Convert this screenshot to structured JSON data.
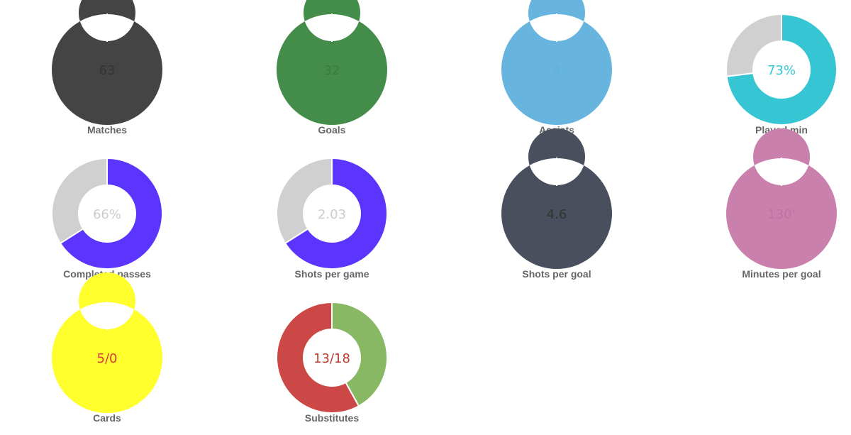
{
  "chart_data": [
    {
      "type": "pie",
      "center_text": "63",
      "center_text_color": "#333333",
      "label": "Matches",
      "slices": [
        {
          "value": 1,
          "color": "#444444"
        }
      ]
    },
    {
      "type": "pie",
      "center_text": "32",
      "center_text_color": "#3a7d3a",
      "label": "Goals",
      "slices": [
        {
          "value": 1,
          "color": "#438c4a"
        }
      ]
    },
    {
      "type": "pie",
      "center_text": "4",
      "center_text_color": "#62b1dc",
      "label": "Assists",
      "slices": [
        {
          "value": 1,
          "color": "#67b5de"
        }
      ]
    },
    {
      "type": "pie",
      "center_text": "73%",
      "center_text_color": "#36c5d3",
      "label": "Played min",
      "slices": [
        {
          "value": 73,
          "color": "#36c5d3"
        },
        {
          "value": 27,
          "color": "#d0d0d0"
        }
      ]
    },
    {
      "type": "pie",
      "center_text": "66%",
      "center_text_color": "#cccccc",
      "label": "Completed passes",
      "slices": [
        {
          "value": 66,
          "color": "#5b34fe"
        },
        {
          "value": 34,
          "color": "#d0d0d0"
        }
      ]
    },
    {
      "type": "pie",
      "center_text": "2.03",
      "center_text_color": "#cccccc",
      "label": "Shots per game",
      "slices": [
        {
          "value": 66,
          "color": "#5b34fe"
        },
        {
          "value": 34,
          "color": "#d0d0d0"
        }
      ]
    },
    {
      "type": "pie",
      "center_text": "4.6",
      "center_text_color": "#333333",
      "label": "Shots per goal",
      "slices": [
        {
          "value": 1,
          "color": "#4a4f5e"
        }
      ]
    },
    {
      "type": "pie",
      "center_text": "130'",
      "center_text_color": "#c46fa3",
      "label": "Minutes per goal",
      "slices": [
        {
          "value": 1,
          "color": "#c980ac"
        }
      ]
    },
    {
      "type": "pie",
      "center_text": "5/0",
      "center_text_color": "#d9363e",
      "label": "Cards",
      "slices": [
        {
          "value": 1,
          "color": "#ffff2e"
        }
      ]
    },
    {
      "type": "pie",
      "center_text": "13/18",
      "center_text_color": "#c0392b",
      "label": "Substitutes",
      "slices": [
        {
          "value": 13,
          "color": "#88b863"
        },
        {
          "value": 18,
          "color": "#cc4846"
        }
      ]
    }
  ]
}
